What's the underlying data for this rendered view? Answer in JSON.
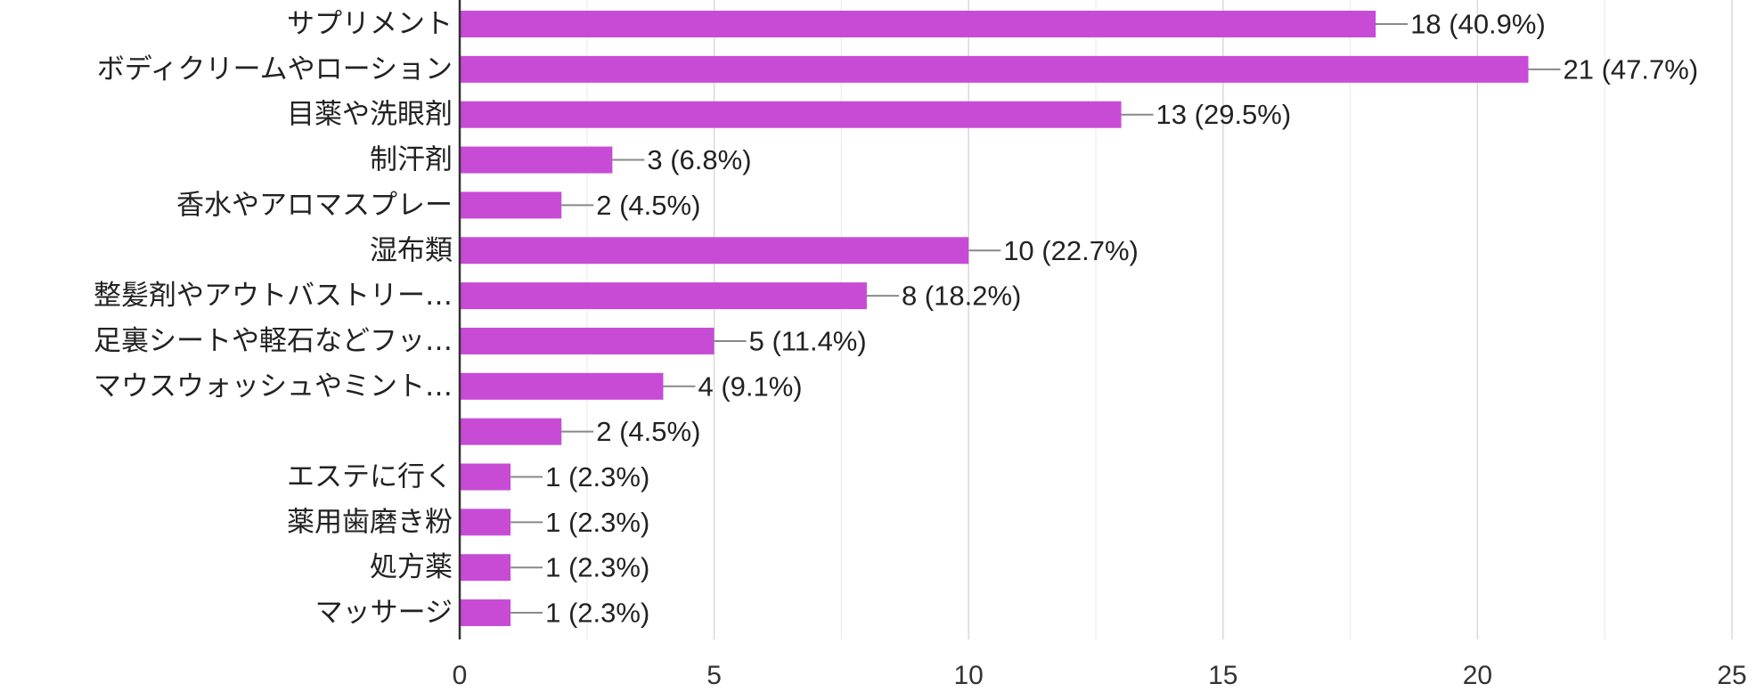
{
  "chart_data": {
    "type": "bar",
    "orientation": "horizontal",
    "categories": [
      "サプリメント",
      "ボディクリームやローション",
      "目薬や洗眼剤",
      "制汗剤",
      "香水やアロマスプレー",
      "湿布類",
      "整髪剤やアウトバストリー…",
      "足裏シートや軽石などフッ…",
      "マウスウォッシュやミント…",
      "",
      "エステに行く",
      "薬用歯磨き粉",
      "処方薬",
      "マッサージ"
    ],
    "values": [
      18,
      21,
      13,
      3,
      2,
      10,
      8,
      5,
      4,
      2,
      1,
      1,
      1,
      1
    ],
    "value_labels": [
      "18 (40.9%)",
      "21 (47.7%)",
      "13 (29.5%)",
      "3 (6.8%)",
      "2 (4.5%)",
      "10 (22.7%)",
      "8 (18.2%)",
      "5 (11.4%)",
      "4 (9.1%)",
      "2 (4.5%)",
      "1 (2.3%)",
      "1 (2.3%)",
      "1 (2.3%)",
      "1 (2.3%)"
    ],
    "x_ticks": [
      "0",
      "5",
      "10",
      "15",
      "20",
      "25"
    ],
    "xlim": [
      0,
      25
    ],
    "grid": true,
    "bar_color": "#c84bd6",
    "title": "",
    "xlabel": "",
    "ylabel": ""
  }
}
